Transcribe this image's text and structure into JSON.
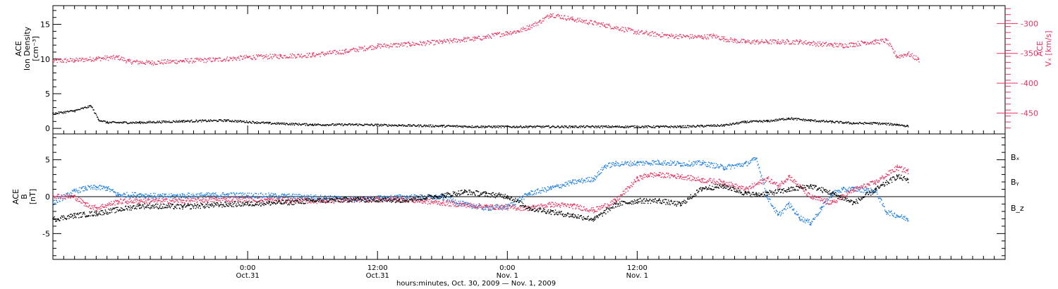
{
  "chart_data": [
    {
      "type": "scatter",
      "ylabel_lines": [
        "ACE",
        "Ion Density",
        "[cm⁻³]"
      ],
      "y_ticks": [
        0,
        5,
        10,
        15
      ],
      "ylim": [
        -0.8,
        17.7
      ],
      "y2label_lines": [
        "ACE",
        "Vₓ [km/s]"
      ],
      "y2_ticks": [
        -300,
        -350,
        -400,
        -450
      ],
      "y2lim": [
        -485,
        -270
      ],
      "series": [
        {
          "color": "#e8325f",
          "x": [
            0,
            2,
            4,
            6,
            7,
            9,
            12,
            15,
            18,
            21,
            24,
            27,
            30,
            33,
            36,
            37,
            38,
            39,
            40,
            41,
            42,
            43,
            44,
            45,
            46,
            48,
            51,
            54,
            57,
            60,
            61,
            62,
            63,
            64,
            65,
            66,
            67,
            68,
            69,
            70,
            71,
            72,
            73,
            74,
            75,
            76,
            77,
            78,
            79,
            80
          ],
          "y": [
            -362,
            -361,
            -358,
            -356,
            -363,
            -365,
            -362,
            -360,
            -356,
            -354,
            -352,
            -346,
            -337,
            -334,
            -330,
            -328,
            -326,
            -325,
            -322,
            -318,
            -315,
            -312,
            -305,
            -296,
            -284,
            -292,
            -302,
            -314,
            -320,
            -322,
            -320,
            -325,
            -328,
            -330,
            -330,
            -330,
            -330,
            -330,
            -330,
            -332,
            -334,
            -335,
            -336,
            -334,
            -331,
            -330,
            -328,
            -355,
            -350,
            -360
          ]
        },
        {
          "color": "#000000",
          "x": [
            0,
            2,
            3.5,
            4.2,
            5,
            8,
            12,
            16,
            20,
            24,
            28,
            32,
            36,
            40,
            44,
            48,
            52,
            56,
            58,
            60,
            62,
            64,
            66,
            68,
            70,
            72,
            74,
            76,
            78,
            79
          ],
          "y": [
            2.2,
            2.6,
            3.3,
            1.3,
            0.9,
            0.9,
            1.1,
            1.2,
            0.8,
            0.6,
            0.6,
            0.5,
            0.4,
            0.3,
            0.3,
            0.3,
            0.3,
            0.3,
            0.3,
            0.4,
            0.5,
            1.0,
            1.1,
            1.5,
            1.2,
            1.0,
            0.8,
            0.8,
            0.6,
            0.4
          ]
        }
      ]
    },
    {
      "type": "scatter",
      "ylabel_lines": [
        "ACE",
        "B",
        "[nT]"
      ],
      "y_ticks": [
        -5,
        0,
        5
      ],
      "ylim": [
        -8.5,
        8.5
      ],
      "legend": [
        "Bₓ",
        "Bᵧ",
        "B_z"
      ],
      "series": [
        {
          "name": "Bₓ",
          "color": "#000000",
          "x": [
            0,
            2,
            4,
            8,
            12,
            16,
            18,
            20,
            22,
            24,
            28,
            32,
            36,
            38,
            40,
            42,
            44,
            46,
            48,
            50,
            52,
            54,
            56,
            58,
            60,
            62,
            64,
            65,
            66,
            68,
            70,
            72,
            74,
            76,
            78,
            79
          ],
          "y": [
            -3.0,
            -2.5,
            -2.2,
            -1.2,
            -1.3,
            -1.0,
            -0.9,
            -0.8,
            -0.7,
            -0.5,
            -0.3,
            -0.4,
            0.2,
            0.7,
            0.4,
            0.1,
            -1.5,
            -2.0,
            -2.5,
            -3.0,
            -1.0,
            -0.5,
            -0.5,
            -1.0,
            1.2,
            1.5,
            0.5,
            0.3,
            0.5,
            1.0,
            1.5,
            0.5,
            -0.8,
            1.0,
            2.8,
            2.3
          ]
        },
        {
          "name": "Bᵧ",
          "color": "#1f80e0",
          "x": [
            0,
            2,
            3,
            4,
            5,
            6,
            8,
            10,
            12,
            16,
            20,
            24,
            28,
            32,
            36,
            38,
            40,
            42,
            44,
            46,
            48,
            50,
            51,
            52,
            54,
            56,
            58,
            60,
            62,
            64,
            65,
            66,
            67,
            68,
            69,
            70,
            71,
            72,
            73,
            74,
            76,
            77,
            78,
            79
          ],
          "y": [
            -0.8,
            0.8,
            1.2,
            1.3,
            1.2,
            0.3,
            0.3,
            0.1,
            0.2,
            0.3,
            0.2,
            0.0,
            -0.3,
            0.0,
            0.0,
            -1.0,
            -1.5,
            -1.3,
            0.5,
            1.2,
            2.0,
            2.5,
            4.2,
            4.5,
            4.6,
            4.7,
            4.5,
            4.6,
            4.0,
            4.5,
            5.2,
            0.0,
            -2.5,
            -1.0,
            -2.8,
            -3.5,
            -1.5,
            0.5,
            1.0,
            1.1,
            0.8,
            -2.0,
            -2.5,
            -3.0
          ]
        },
        {
          "name": "B_z",
          "color": "#e8325f",
          "x": [
            0,
            2,
            3,
            4,
            6,
            8,
            12,
            16,
            20,
            24,
            28,
            32,
            36,
            40,
            44,
            46,
            48,
            50,
            52,
            54,
            55,
            56,
            58,
            60,
            62,
            64,
            66,
            67,
            68,
            70,
            72,
            74,
            76,
            78,
            79
          ],
          "y": [
            0.2,
            0.0,
            -1.0,
            -1.5,
            -0.6,
            -0.5,
            -0.5,
            -0.3,
            -0.4,
            -0.5,
            -0.4,
            -0.3,
            -0.8,
            -1.3,
            -1.5,
            -1.0,
            -1.2,
            -1.8,
            -0.5,
            2.5,
            3.0,
            3.0,
            2.8,
            2.3,
            2.0,
            1.0,
            2.5,
            1.5,
            2.8,
            0.0,
            -0.8,
            1.0,
            2.0,
            4.0,
            3.5
          ]
        }
      ]
    }
  ],
  "x_axis": {
    "label": "hours:minutes, Oct. 30, 2009 — Nov.  1, 2009",
    "major_ticks": [
      {
        "t": 18,
        "time": "0:00",
        "date": "Oct.31"
      },
      {
        "t": 30,
        "time": "12:00",
        "date": "Oct.31"
      },
      {
        "t": 42,
        "time": "0:00",
        "date": "Nov. 1"
      },
      {
        "t": 54,
        "time": "12:00",
        "date": "Nov. 1"
      }
    ],
    "xlim": [
      0,
      88
    ]
  }
}
